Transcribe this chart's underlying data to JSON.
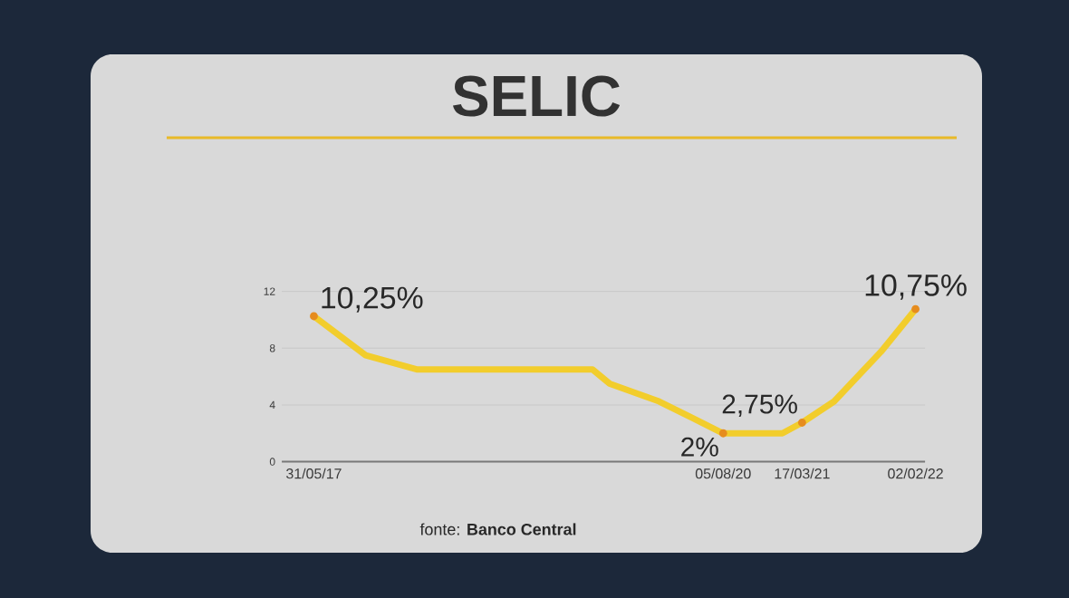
{
  "chart_data": {
    "type": "line",
    "title": "SELIC",
    "x": [
      "2017-05-31",
      "2017-10-25",
      "2018-03-21",
      "2019-07-31",
      "2019-09-18",
      "2020-02-05",
      "2020-08-05",
      "2021-01-20",
      "2021-03-17",
      "2021-06-16",
      "2021-10-27",
      "2022-02-02"
    ],
    "series": [
      {
        "color": "#f2cd2c",
        "values": [
          10.25,
          7.5,
          6.5,
          6.5,
          5.5,
          4.25,
          2,
          2,
          2.75,
          4.25,
          7.75,
          10.75
        ]
      }
    ],
    "xlim": [
      "2017-03-01",
      "2022-03-01"
    ],
    "xticks": [
      {
        "value": "2017-05-31",
        "label": "31/05/17"
      },
      {
        "value": "2020-08-05",
        "label": "05/08/20"
      },
      {
        "value": "2021-03-17",
        "label": "17/03/21"
      },
      {
        "value": "2022-02-02",
        "label": "02/02/22"
      }
    ],
    "ylim": [
      0,
      12
    ],
    "yticks": [
      0,
      4,
      8,
      12
    ],
    "grid": "y",
    "annotations": [
      {
        "text": "10,25%",
        "x": "2017-05-31",
        "y": 10.25
      },
      {
        "text": "2%",
        "x": "2020-08-05",
        "y": 2
      },
      {
        "text": "2,75%",
        "x": "2021-03-17",
        "y": 2.75
      },
      {
        "text": "10,75%",
        "x": "2022-02-02",
        "y": 10.75
      },
      "fonte: **Banco Central**"
    ]
  }
}
